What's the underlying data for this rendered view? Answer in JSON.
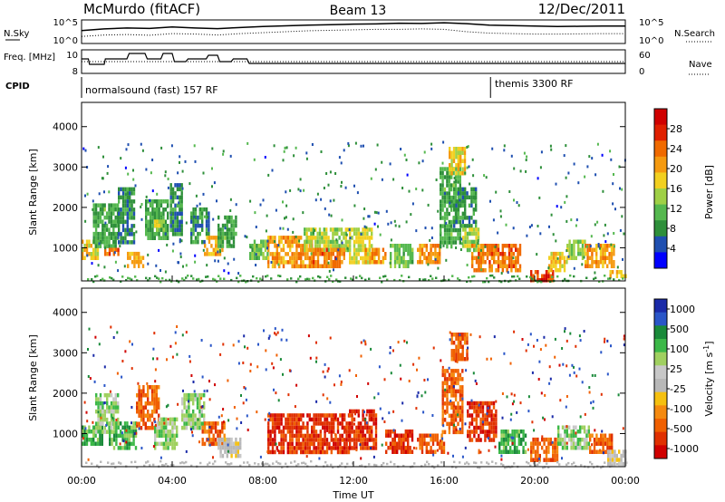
{
  "header": {
    "station": "McMurdo (fitACF)",
    "beam": "Beam 13",
    "date": "12/Dec/2011"
  },
  "colors": {
    "power_scale": [
      "#0000ff",
      "#1f4fb0",
      "#2e8f3a",
      "#55b84f",
      "#9fd046",
      "#f2d020",
      "#f59a10",
      "#f06a00",
      "#e02000",
      "#d00000"
    ],
    "velocity_scale": [
      "#1a2aa8",
      "#2a56c8",
      "#1a8a3a",
      "#3cb848",
      "#a0d060",
      "#c8c8c8",
      "#b8b8b8",
      "#f5c010",
      "#f58a10",
      "#f06000",
      "#e03000",
      "#d00000"
    ]
  },
  "chart_data": [
    {
      "type": "line",
      "panel": "noise",
      "left_label": "N.Sky",
      "right_label": "N.Search",
      "left_ticks": [
        "10^5",
        "10^0"
      ],
      "right_ticks": [
        "10^5",
        "10^0"
      ],
      "series": [
        {
          "name": "N.Sky",
          "style": "solid",
          "x": [
            0,
            1,
            2,
            3,
            4,
            5,
            6,
            7,
            8,
            9,
            10,
            11,
            12,
            13,
            14,
            15,
            16,
            17,
            18,
            19,
            20,
            21,
            22,
            23,
            24
          ],
          "values": [
            0.55,
            0.62,
            0.66,
            0.64,
            0.7,
            0.66,
            0.63,
            0.68,
            0.72,
            0.75,
            0.78,
            0.8,
            0.82,
            0.83,
            0.86,
            0.85,
            0.88,
            0.84,
            0.78,
            0.76,
            0.74,
            0.72,
            0.73,
            0.74,
            0.74
          ]
        },
        {
          "name": "N.Search",
          "style": "dotted",
          "x": [
            0,
            1,
            2,
            3,
            4,
            5,
            6,
            7,
            8,
            9,
            10,
            11,
            12,
            13,
            14,
            15,
            16,
            17,
            18,
            19,
            20,
            21,
            22,
            23,
            24
          ],
          "values": [
            0.3,
            0.36,
            0.38,
            0.35,
            0.42,
            0.4,
            0.36,
            0.42,
            0.46,
            0.5,
            0.54,
            0.56,
            0.58,
            0.6,
            0.6,
            0.62,
            0.6,
            0.5,
            0.44,
            0.42,
            0.4,
            0.4,
            0.41,
            0.42,
            0.42
          ]
        }
      ]
    },
    {
      "type": "line",
      "panel": "frequency",
      "left_label": "Freq. [MHz]",
      "right_label": "Nave",
      "left_ticks": [
        "10",
        "8"
      ],
      "right_ticks": [
        "60",
        "0"
      ],
      "series": [
        {
          "name": "Freq.",
          "style": "solid",
          "x": [
            0,
            0.3,
            0.35,
            1.0,
            1.05,
            2.0,
            2.1,
            2.8,
            2.9,
            3.5,
            3.6,
            4.0,
            4.1,
            4.6,
            4.7,
            5.5,
            5.6,
            6.0,
            6.1,
            6.6,
            6.7,
            7.3,
            7.4,
            24
          ],
          "values": [
            9.6,
            9.6,
            9.0,
            9.0,
            9.6,
            9.6,
            10.2,
            10.2,
            9.6,
            9.6,
            10.2,
            10.2,
            9.3,
            9.3,
            9.6,
            9.6,
            10.0,
            10.0,
            9.3,
            9.3,
            9.6,
            9.6,
            9.1,
            9.1
          ]
        },
        {
          "name": "Nave",
          "style": "dotted",
          "x": [
            0,
            24
          ],
          "values": [
            30,
            30
          ]
        }
      ],
      "cpid": {
        "label": "CPID",
        "segments": [
          {
            "text": "normalsound (fast) 157 RF",
            "start_ut": 0.0,
            "end_ut": 18.05
          },
          {
            "text": "themis 3300 RF",
            "start_ut": 18.05,
            "end_ut": 24.0
          }
        ]
      }
    },
    {
      "type": "heatmap",
      "panel": "power",
      "ylabel": "Slant Range [km]",
      "yticks": [
        1000,
        2000,
        3000,
        4000
      ],
      "ylim": [
        180,
        4600
      ],
      "xlim": [
        0,
        24
      ],
      "colorbar": {
        "label": "Power [dB]",
        "ticks": [
          4,
          8,
          12,
          16,
          20,
          24,
          28
        ],
        "range": [
          0,
          32
        ]
      },
      "features": [
        {
          "t0": 0.0,
          "t1": 0.7,
          "r0": 700,
          "r1": 1200,
          "value": 18
        },
        {
          "t0": 0.5,
          "t1": 1.6,
          "r0": 1000,
          "r1": 2100,
          "value": 9
        },
        {
          "t0": 1.0,
          "t1": 1.6,
          "r0": 800,
          "r1": 1000,
          "value": 24
        },
        {
          "t0": 1.6,
          "t1": 2.3,
          "r0": 1100,
          "r1": 2500,
          "value": 7
        },
        {
          "t0": 2.0,
          "t1": 2.8,
          "r0": 500,
          "r1": 900,
          "value": 20
        },
        {
          "t0": 2.8,
          "t1": 3.8,
          "r0": 1200,
          "r1": 2200,
          "value": 9
        },
        {
          "t0": 3.2,
          "t1": 3.6,
          "r0": 1400,
          "r1": 1700,
          "value": 16
        },
        {
          "t0": 3.9,
          "t1": 4.4,
          "r0": 1300,
          "r1": 2600,
          "value": 7
        },
        {
          "t0": 4.8,
          "t1": 5.6,
          "r0": 1100,
          "r1": 2000,
          "value": 7
        },
        {
          "t0": 5.4,
          "t1": 6.2,
          "r0": 800,
          "r1": 1300,
          "value": 20
        },
        {
          "t0": 6.0,
          "t1": 6.8,
          "r0": 1000,
          "r1": 1800,
          "value": 9
        },
        {
          "t0": 7.4,
          "t1": 8.2,
          "r0": 700,
          "r1": 1200,
          "value": 12
        },
        {
          "t0": 8.2,
          "t1": 10.2,
          "r0": 500,
          "r1": 1300,
          "value": 22
        },
        {
          "t0": 9.8,
          "t1": 11.8,
          "r0": 900,
          "r1": 1500,
          "value": 14
        },
        {
          "t0": 10.2,
          "t1": 11.6,
          "r0": 500,
          "r1": 1000,
          "value": 24
        },
        {
          "t0": 11.8,
          "t1": 12.8,
          "r0": 600,
          "r1": 1500,
          "value": 16
        },
        {
          "t0": 12.5,
          "t1": 13.4,
          "r0": 600,
          "r1": 1000,
          "value": 22
        },
        {
          "t0": 13.6,
          "t1": 14.6,
          "r0": 500,
          "r1": 1100,
          "value": 12
        },
        {
          "t0": 14.8,
          "t1": 15.8,
          "r0": 600,
          "r1": 1100,
          "value": 22
        },
        {
          "t0": 15.8,
          "t1": 16.7,
          "r0": 1000,
          "r1": 3000,
          "value": 9
        },
        {
          "t0": 16.2,
          "t1": 16.9,
          "r0": 2800,
          "r1": 3500,
          "value": 18
        },
        {
          "t0": 16.4,
          "t1": 17.4,
          "r0": 1500,
          "r1": 2500,
          "value": 7
        },
        {
          "t0": 16.8,
          "t1": 17.5,
          "r0": 900,
          "r1": 1500,
          "value": 14
        },
        {
          "t0": 17.2,
          "t1": 19.4,
          "r0": 400,
          "r1": 1100,
          "value": 24
        },
        {
          "t0": 19.8,
          "t1": 20.8,
          "r0": 180,
          "r1": 450,
          "value": 28
        },
        {
          "t0": 20.6,
          "t1": 21.4,
          "r0": 450,
          "r1": 900,
          "value": 18
        },
        {
          "t0": 21.4,
          "t1": 22.2,
          "r0": 700,
          "r1": 1200,
          "value": 14
        },
        {
          "t0": 22.2,
          "t1": 23.5,
          "r0": 500,
          "r1": 1100,
          "value": 22
        },
        {
          "t0": 23.3,
          "t1": 24.0,
          "r0": 300,
          "r1": 450,
          "value": 20
        }
      ]
    },
    {
      "type": "heatmap",
      "panel": "velocity",
      "ylabel": "Slant Range [km]",
      "yticks": [
        1000,
        2000,
        3000,
        4000
      ],
      "ylim": [
        180,
        4600
      ],
      "xlim": [
        0,
        24
      ],
      "xticks": [
        "00:00",
        "04:00",
        "08:00",
        "12:00",
        "16:00",
        "20:00",
        "00:00"
      ],
      "xlabel": "Time UT",
      "colorbar": {
        "label": "Velocity [m s^-1]",
        "ticks": [
          "1000",
          "500",
          "100",
          "25",
          "-25",
          "-100",
          "-500",
          "-1000"
        ]
      },
      "features": [
        {
          "t0": 0.0,
          "t1": 0.9,
          "r0": 700,
          "r1": 1200,
          "value": 100
        },
        {
          "t0": 0.6,
          "t1": 1.6,
          "r0": 1000,
          "r1": 2000,
          "value": 50
        },
        {
          "t0": 1.2,
          "t1": 2.4,
          "r0": 600,
          "r1": 1300,
          "value": 150
        },
        {
          "t0": 2.4,
          "t1": 3.4,
          "r0": 1100,
          "r1": 2200,
          "value": -150
        },
        {
          "t0": 3.2,
          "t1": 4.2,
          "r0": 600,
          "r1": 1400,
          "value": 60
        },
        {
          "t0": 4.4,
          "t1": 5.4,
          "r0": 1100,
          "r1": 2000,
          "value": 80
        },
        {
          "t0": 5.3,
          "t1": 6.3,
          "r0": 700,
          "r1": 1300,
          "value": -200
        },
        {
          "t0": 6.0,
          "t1": 7.0,
          "r0": 400,
          "r1": 900,
          "value": 0
        },
        {
          "t0": 8.2,
          "t1": 11.8,
          "r0": 500,
          "r1": 1500,
          "value": -300
        },
        {
          "t0": 11.8,
          "t1": 13.0,
          "r0": 600,
          "r1": 1600,
          "value": -350
        },
        {
          "t0": 13.4,
          "t1": 14.6,
          "r0": 500,
          "r1": 1100,
          "value": -250
        },
        {
          "t0": 14.8,
          "t1": 16.0,
          "r0": 500,
          "r1": 1000,
          "value": -150
        },
        {
          "t0": 15.9,
          "t1": 16.8,
          "r0": 1000,
          "r1": 2600,
          "value": -200
        },
        {
          "t0": 16.3,
          "t1": 17.0,
          "r0": 2800,
          "r1": 3500,
          "value": -180
        },
        {
          "t0": 17.0,
          "t1": 18.3,
          "r0": 800,
          "r1": 1800,
          "value": -250
        },
        {
          "t0": 18.4,
          "t1": 19.6,
          "r0": 500,
          "r1": 1100,
          "value": 120
        },
        {
          "t0": 19.8,
          "t1": 21.0,
          "r0": 300,
          "r1": 900,
          "value": -120
        },
        {
          "t0": 21.0,
          "t1": 22.4,
          "r0": 600,
          "r1": 1200,
          "value": 80
        },
        {
          "t0": 22.4,
          "t1": 23.4,
          "r0": 500,
          "r1": 1000,
          "value": -150
        },
        {
          "t0": 23.2,
          "t1": 24.0,
          "r0": 250,
          "r1": 600,
          "value": 0
        }
      ]
    }
  ]
}
